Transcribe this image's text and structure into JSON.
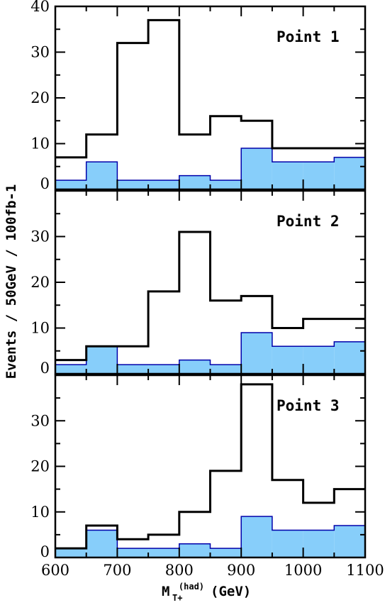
{
  "chart_data": {
    "type": "step-histogram",
    "bin_edges": [
      600,
      650,
      700,
      750,
      800,
      850,
      900,
      950,
      1000,
      1050,
      1100
    ],
    "xlim": [
      600,
      1100
    ],
    "x_ticks": [
      "600",
      "700",
      "800",
      "900",
      "1000",
      "1100"
    ],
    "xlabel": {
      "main": "M",
      "sup": "(had)",
      "sub": "T+",
      "unit": "(GeV)"
    },
    "ylabel": "Events / 50GeV / 100fb-1",
    "colors": {
      "fill": "#87cefa",
      "fill_edge": "#0000aa",
      "line": "#000000"
    },
    "panels": [
      {
        "label": "Point 1",
        "ylim": [
          0,
          40
        ],
        "y_ticks": [
          "0",
          "10",
          "20",
          "30",
          "40"
        ],
        "filled_counts": [
          2,
          6,
          2,
          2,
          3,
          2,
          9,
          6,
          6,
          7
        ],
        "line_counts": [
          7,
          12,
          32,
          37,
          12,
          16,
          15,
          9,
          9,
          9
        ]
      },
      {
        "label": "Point 2",
        "ylim": [
          0,
          40
        ],
        "y_ticks": [
          "0",
          "10",
          "20",
          "30"
        ],
        "filled_counts": [
          2,
          6,
          2,
          2,
          3,
          2,
          9,
          6,
          6,
          7
        ],
        "line_counts": [
          3,
          6,
          6,
          18,
          31,
          16,
          17,
          10,
          12,
          12
        ]
      },
      {
        "label": "Point 3",
        "ylim": [
          0,
          40
        ],
        "y_ticks": [
          "0",
          "10",
          "20",
          "30"
        ],
        "filled_counts": [
          2,
          6,
          2,
          2,
          3,
          2,
          9,
          6,
          6,
          7
        ],
        "line_counts": [
          2,
          7,
          4,
          5,
          10,
          19,
          38,
          17,
          12,
          15
        ]
      }
    ]
  }
}
